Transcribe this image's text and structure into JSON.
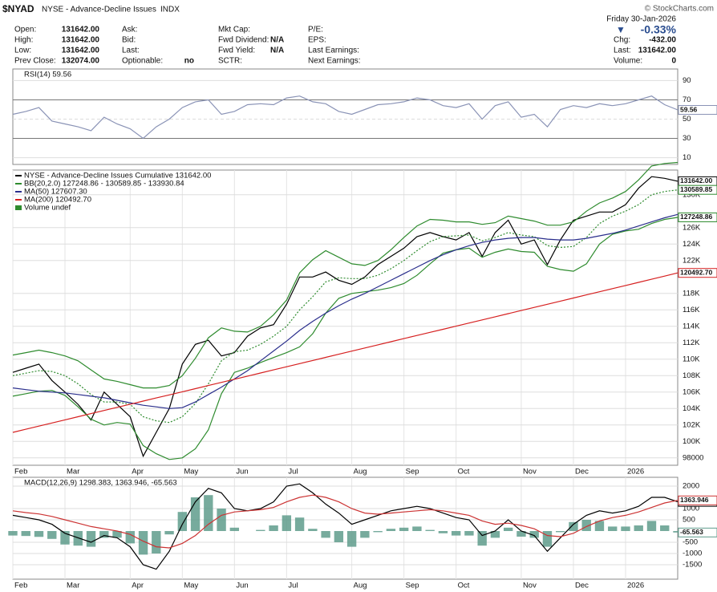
{
  "header": {
    "symbol": "$NYAD",
    "name": "NYSE - Advance-Decline Issues",
    "exchange": "INDX",
    "credit": "© StockCharts.com",
    "date": "Friday 30-Jan-2026",
    "arrow": "▼",
    "change_pct": "-0.33%",
    "columns": [
      [
        {
          "label": "Open:",
          "value": "131642.00"
        },
        {
          "label": "High:",
          "value": "131642.00"
        },
        {
          "label": "Low:",
          "value": "131642.00"
        },
        {
          "label": "Prev Close:",
          "value": "132074.00"
        }
      ],
      [
        {
          "label": "Ask:"
        },
        {
          "label": "Bid:"
        },
        {
          "label": "Last:"
        },
        {
          "label": "Optionable:",
          "value": "no"
        }
      ],
      [
        {
          "label": "Mkt Cap:"
        },
        {
          "label": "Fwd Dividend:",
          "value": "N/A"
        },
        {
          "label": "Fwd Yield:",
          "value": "N/A"
        },
        {
          "label": "SCTR:"
        }
      ],
      [
        {
          "label": "P/E:"
        },
        {
          "label": "EPS:"
        },
        {
          "label": "Last Earnings:"
        },
        {
          "label": "Next Earnings:"
        }
      ]
    ],
    "right": [
      {
        "label": "Chg:",
        "value": "-432.00"
      },
      {
        "label": "Last:",
        "value": "131642.00"
      },
      {
        "label": "Volume:",
        "value": "0"
      }
    ]
  },
  "chart_data": [
    {
      "type": "line",
      "title": "RSI(14) 59.56",
      "ylim": [
        3,
        102
      ],
      "yticks": [
        90,
        70,
        50,
        30,
        10
      ],
      "grid": true,
      "series": [
        {
          "color": "#8a93b6",
          "last_tag": true,
          "values": [
            55,
            58,
            62,
            48,
            45,
            42,
            38,
            52,
            45,
            40,
            30,
            42,
            50,
            62,
            68,
            70,
            55,
            58,
            65,
            66,
            65,
            72,
            74,
            68,
            66,
            58,
            55,
            60,
            65,
            66,
            68,
            72,
            70,
            64,
            62,
            66,
            50,
            64,
            68,
            52,
            55,
            42,
            60,
            64,
            62,
            66,
            64,
            66,
            70,
            74,
            65,
            59.56
          ]
        }
      ]
    },
    {
      "type": "line",
      "ylim": [
        97100,
        133000
      ],
      "grid": true,
      "volume_legend": "Volume undef",
      "yticks": [
        98000,
        {
          "value": 100000,
          "label": "100K"
        },
        {
          "value": 102000,
          "label": "102K"
        },
        {
          "value": 104000,
          "label": "104K"
        },
        {
          "value": 106000,
          "label": "106K"
        },
        {
          "value": 108000,
          "label": "108K"
        },
        {
          "value": 110000,
          "label": "110K"
        },
        {
          "value": 112000,
          "label": "112K"
        },
        {
          "value": 114000,
          "label": "114K"
        },
        {
          "value": 116000,
          "label": "116K"
        },
        {
          "value": 118000,
          "label": "118K"
        },
        {
          "value": 122000,
          "label": "122K"
        },
        {
          "value": 124000,
          "label": "124K"
        },
        {
          "value": 126000,
          "label": "126K"
        },
        {
          "value": 130000,
          "label": "130K"
        }
      ],
      "categories": [
        "Feb",
        null,
        null,
        null,
        "Mar",
        null,
        null,
        null,
        null,
        "Apr",
        null,
        null,
        null,
        "May",
        null,
        null,
        null,
        "Jun",
        null,
        null,
        null,
        "Jul",
        null,
        null,
        null,
        null,
        "Aug",
        null,
        null,
        null,
        "Sep",
        null,
        null,
        null,
        "Oct",
        null,
        null,
        null,
        null,
        "Nov",
        null,
        null,
        null,
        "Dec",
        null,
        null,
        null,
        "2026",
        null,
        null,
        null,
        null
      ],
      "series": [
        {
          "name": "NYSE - Advance-Decline Issues Cumulative 131642.00",
          "color": "#000000",
          "last_label": "131642.00",
          "values": [
            108400,
            108900,
            109400,
            107400,
            106000,
            104500,
            102600,
            106000,
            104500,
            103000,
            98200,
            101100,
            104000,
            109400,
            111800,
            112300,
            110400,
            110800,
            112800,
            113800,
            114200,
            116700,
            120000,
            120000,
            120600,
            119600,
            119100,
            120000,
            121500,
            122500,
            123500,
            124900,
            125400,
            124900,
            124500,
            125400,
            122500,
            125400,
            126900,
            124000,
            124500,
            121500,
            124500,
            126900,
            127400,
            127900,
            127900,
            128800,
            130800,
            132200,
            132000,
            131642
          ]
        },
        {
          "name": "BB(20,2.0) 127248.86 - 130589.85 - 133930.84",
          "color": "#2e8b2e",
          "dash": true,
          "last_label": "130589.85",
          "values": [
            108000,
            108300,
            108600,
            108500,
            108000,
            107000,
            105700,
            104800,
            104800,
            104500,
            103000,
            102500,
            102300,
            103000,
            104600,
            107000,
            109800,
            110900,
            111100,
            111800,
            112800,
            114000,
            116000,
            117600,
            119400,
            119900,
            119800,
            119800,
            120200,
            121000,
            122000,
            123200,
            124300,
            124900,
            125000,
            125100,
            124400,
            124800,
            125400,
            125100,
            124900,
            123800,
            123600,
            123700,
            124800,
            126500,
            127400,
            128000,
            128800,
            130000,
            130400,
            130589.85
          ]
        },
        {
          "color": "#2e8b2e",
          "values": [
            110500,
            110800,
            111100,
            110800,
            110400,
            109800,
            108700,
            107600,
            107300,
            106900,
            106500,
            106500,
            106800,
            108000,
            110100,
            112600,
            113800,
            113400,
            113300,
            114000,
            115400,
            117200,
            120500,
            122100,
            123200,
            122400,
            121600,
            121400,
            122000,
            123300,
            124800,
            126200,
            127000,
            126900,
            126700,
            126700,
            126400,
            126600,
            127400,
            127100,
            126800,
            126300,
            126300,
            126700,
            128000,
            129000,
            129600,
            130400,
            131800,
            133500,
            133800,
            133930.84
          ]
        },
        {
          "color": "#2e8b2e",
          "last_label": "127248.86",
          "values": [
            105500,
            105800,
            106100,
            106200,
            105600,
            104200,
            102700,
            102000,
            102300,
            102100,
            99500,
            98500,
            97800,
            98000,
            99100,
            101400,
            105800,
            108400,
            108900,
            109600,
            110200,
            110800,
            111500,
            113100,
            115600,
            117400,
            118000,
            118200,
            118400,
            118700,
            119200,
            120200,
            121600,
            122900,
            123300,
            123500,
            122400,
            123000,
            123400,
            123100,
            123000,
            121300,
            120900,
            120700,
            121600,
            124000,
            125200,
            125600,
            125800,
            126500,
            127000,
            127248.86
          ]
        },
        {
          "name": "MA(50) 127607.30",
          "color": "#2a2e8c",
          "values": [
            106500,
            106300,
            106100,
            106000,
            105900,
            105700,
            105500,
            105300,
            105000,
            104700,
            104400,
            104200,
            104000,
            104100,
            104800,
            105700,
            106600,
            107600,
            108600,
            109800,
            111000,
            112200,
            113500,
            114600,
            115600,
            116500,
            117300,
            118000,
            118800,
            119600,
            120400,
            121200,
            122000,
            122700,
            123300,
            123800,
            124200,
            124500,
            124700,
            124800,
            124800,
            124600,
            124500,
            124500,
            124700,
            125000,
            125300,
            125700,
            126200,
            126700,
            127200,
            127607.3
          ]
        },
        {
          "name": "MA(200) 120492.70",
          "color": "#d62020",
          "last_label": "120492.70",
          "values": [
            101100,
            101480,
            101860,
            102240,
            102620,
            103000,
            103380,
            103760,
            104140,
            104520,
            104900,
            105280,
            105660,
            106040,
            106420,
            106800,
            107180,
            107560,
            107940,
            108320,
            108700,
            109080,
            109460,
            109840,
            110220,
            110600,
            110980,
            111360,
            111740,
            112120,
            112500,
            112880,
            113260,
            113640,
            114020,
            114400,
            114780,
            115160,
            115540,
            115920,
            116300,
            116680,
            117060,
            117440,
            117820,
            118200,
            118580,
            118960,
            119340,
            119720,
            120100,
            120492.7
          ]
        }
      ]
    },
    {
      "type": "line",
      "title": "MACD(12,26,9) 1298.383, 1363.946, -65.563",
      "ylim": [
        -2143,
        2393
      ],
      "yticks": [
        2000,
        1000,
        500,
        -500,
        -1000,
        -1500
      ],
      "grid": true,
      "categories": [
        "Feb",
        null,
        null,
        null,
        "Mar",
        null,
        null,
        null,
        null,
        "Apr",
        null,
        null,
        null,
        "May",
        null,
        null,
        null,
        "Jun",
        null,
        null,
        null,
        "Jul",
        null,
        null,
        null,
        null,
        "Aug",
        null,
        null,
        null,
        "Sep",
        null,
        null,
        null,
        "Oct",
        null,
        null,
        null,
        null,
        "Nov",
        null,
        null,
        null,
        "Dec",
        null,
        null,
        null,
        "2026",
        null,
        null,
        null,
        null
      ],
      "series": [
        {
          "color": "#5f9c8c",
          "bars": true,
          "last_tag": true,
          "values": [
            -200,
            -220,
            -260,
            -350,
            -600,
            -650,
            -700,
            -300,
            -300,
            -550,
            -1050,
            -1000,
            -150,
            850,
            1500,
            1600,
            1000,
            150,
            0,
            50,
            250,
            700,
            600,
            100,
            -300,
            -500,
            -700,
            -300,
            -50,
            100,
            150,
            200,
            50,
            -100,
            -200,
            -200,
            -650,
            -300,
            150,
            -250,
            -300,
            -700,
            -50,
            400,
            500,
            450,
            200,
            200,
            250,
            450,
            250,
            -65.563
          ]
        },
        {
          "color": "#000000",
          "last_tag": true,
          "values": [
            700,
            600,
            500,
            300,
            -100,
            -300,
            -500,
            -200,
            -300,
            -700,
            -1500,
            -1700,
            -900,
            300,
            1300,
            1900,
            1700,
            1000,
            900,
            1000,
            1300,
            2000,
            2100,
            1700,
            1200,
            800,
            300,
            500,
            700,
            900,
            1000,
            1100,
            1000,
            800,
            600,
            500,
            -200,
            0,
            500,
            0,
            -200,
            -900,
            -300,
            300,
            700,
            900,
            800,
            900,
            1100,
            1500,
            1500,
            1298.383
          ]
        },
        {
          "color": "#cc3333",
          "last_tag": true,
          "values": [
            900,
            820,
            760,
            650,
            500,
            350,
            200,
            100,
            0,
            -150,
            -450,
            -700,
            -750,
            -550,
            -200,
            300,
            700,
            850,
            900,
            950,
            1050,
            1300,
            1500,
            1600,
            1500,
            1300,
            1000,
            800,
            750,
            800,
            850,
            900,
            950,
            900,
            800,
            700,
            450,
            300,
            350,
            250,
            100,
            -200,
            -250,
            -100,
            200,
            450,
            600,
            700,
            850,
            1050,
            1250,
            1363.946
          ]
        }
      ]
    }
  ]
}
